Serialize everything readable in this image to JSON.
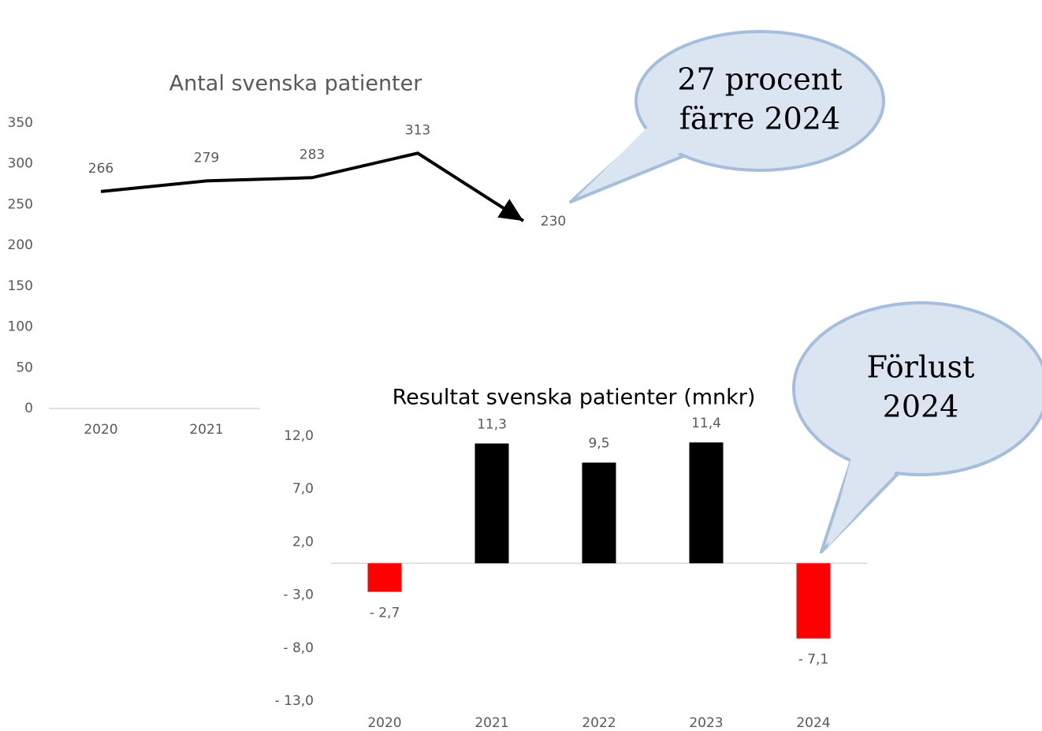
{
  "chart_data": [
    {
      "type": "line",
      "title": "Antal svenska patienter",
      "categories": [
        "2020",
        "2021",
        null,
        null,
        null
      ],
      "values": [
        266,
        279,
        283,
        313,
        230
      ],
      "color": "#000000",
      "ylim": [
        0,
        350
      ],
      "yticks": [
        0,
        50,
        100,
        150,
        200,
        250,
        300,
        350
      ],
      "annotations": [
        [
          "27 procent",
          "färre 2024"
        ]
      ]
    },
    {
      "type": "bar",
      "title": "Resultat svenska patienter (mnkr)",
      "categories": [
        "2020",
        "2021",
        "2022",
        "2023",
        "2024"
      ],
      "values": [
        -2.7,
        11.3,
        9.5,
        11.4,
        -7.1
      ],
      "value_labels": [
        "- 2,7",
        "11,3",
        "9,5",
        "11,4",
        "- 7,1"
      ],
      "colors": [
        "#ff0000",
        "#000000",
        "#000000",
        "#000000",
        "#ff0000"
      ],
      "ylim": [
        -13,
        12
      ],
      "yticks": [
        {
          "value": 12,
          "label": "12,0"
        },
        {
          "value": 7,
          "label": "7,0"
        },
        {
          "value": 2,
          "label": "2,0"
        },
        {
          "value": -3,
          "label": "- 3,0"
        },
        {
          "value": -8,
          "label": "- 8,0"
        },
        {
          "value": -13,
          "label": "- 13,0"
        }
      ],
      "annotations": [
        [
          "Förlust",
          "2024"
        ]
      ]
    }
  ]
}
